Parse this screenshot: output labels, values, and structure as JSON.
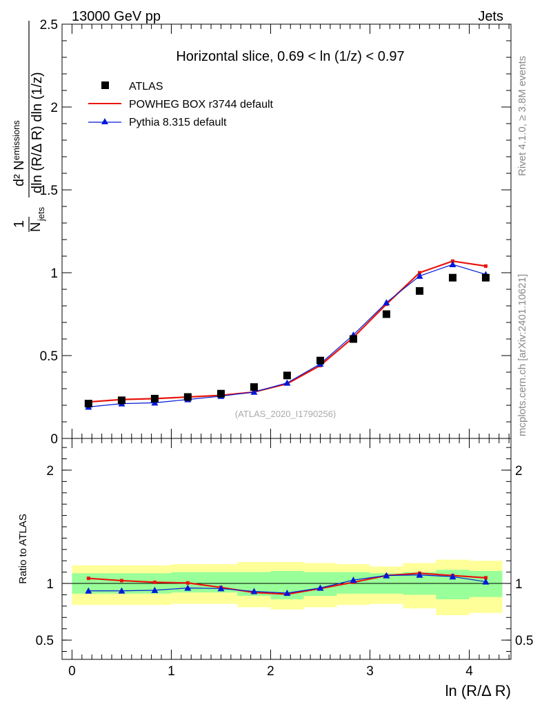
{
  "header": {
    "left": "13000 GeV pp",
    "right": "Jets"
  },
  "side_labels": {
    "rivet": "Rivet 4.1.0, ≥ 3.8M events",
    "mcplots": "mcplots.cern.ch [arXiv:2401.10621]"
  },
  "chart_data": [
    {
      "type": "scatter",
      "panel": "main",
      "title": "Horizontal slice, 0.69 < ln (1/z) < 0.97",
      "ylabel": "1/N_jets d²N_emissions / dln(R/ΔR) dln(1/z)",
      "xlabel": "",
      "xlim": [
        -0.1,
        4.42
      ],
      "ylim": [
        0,
        2.5
      ],
      "yticks": [
        "0",
        "0.5",
        "1",
        "1.5",
        "2",
        "2.5"
      ],
      "watermark": "(ATLAS_2020_I1790256)",
      "x": [
        0.166,
        0.5,
        0.833,
        1.166,
        1.5,
        1.833,
        2.166,
        2.5,
        2.833,
        3.166,
        3.5,
        3.833,
        4.166
      ],
      "series": [
        {
          "name": "ATLAS",
          "style": "marker-square",
          "color": "#000000",
          "values": [
            0.21,
            0.23,
            0.24,
            0.25,
            0.27,
            0.31,
            0.38,
            0.47,
            0.6,
            0.75,
            0.89,
            0.97,
            0.97
          ]
        },
        {
          "name": "POWHEG BOX r3744 default",
          "style": "line-red",
          "color": "#e8140c",
          "values": [
            0.22,
            0.235,
            0.24,
            0.25,
            0.26,
            0.28,
            0.33,
            0.44,
            0.61,
            0.81,
            1.0,
            1.07,
            1.04
          ]
        },
        {
          "name": "Pythia 8.315 default",
          "style": "line-blue-triangle",
          "color": "#0018d8",
          "values": [
            0.19,
            0.21,
            0.215,
            0.235,
            0.255,
            0.28,
            0.335,
            0.45,
            0.625,
            0.82,
            0.98,
            1.05,
            0.99
          ]
        }
      ]
    },
    {
      "type": "line",
      "panel": "ratio",
      "ylabel": "Ratio to ATLAS",
      "xlabel": "ln (R/Δ R)",
      "xlim": [
        -0.1,
        4.42
      ],
      "ylim": [
        0.33,
        2.28
      ],
      "xticks": [
        "0",
        "1",
        "2",
        "3",
        "4"
      ],
      "yticks": [
        "0.5",
        "1",
        "2"
      ],
      "bin_edges": [
        0.0,
        0.333,
        0.666,
        1.0,
        1.333,
        1.666,
        2.0,
        2.333,
        2.666,
        3.0,
        3.333,
        3.666,
        4.0,
        4.333
      ],
      "band_outer": {
        "color": "#ffff99",
        "lo": [
          0.81,
          0.81,
          0.81,
          0.82,
          0.82,
          0.79,
          0.77,
          0.79,
          0.81,
          0.82,
          0.78,
          0.72,
          0.74
        ],
        "hi": [
          1.16,
          1.16,
          1.16,
          1.17,
          1.17,
          1.19,
          1.19,
          1.18,
          1.17,
          1.15,
          1.18,
          1.21,
          1.2
        ]
      },
      "band_inner": {
        "color": "#99ff99",
        "lo": [
          0.91,
          0.91,
          0.91,
          0.92,
          0.92,
          0.89,
          0.86,
          0.89,
          0.91,
          0.91,
          0.9,
          0.86,
          0.88
        ],
        "hi": [
          1.09,
          1.09,
          1.09,
          1.1,
          1.1,
          1.1,
          1.11,
          1.1,
          1.1,
          1.09,
          1.1,
          1.12,
          1.11
        ]
      },
      "x": [
        0.166,
        0.5,
        0.833,
        1.166,
        1.5,
        1.833,
        2.166,
        2.5,
        2.833,
        3.166,
        3.5,
        3.833,
        4.166
      ],
      "series": [
        {
          "name": "POWHEG BOX r3744 default",
          "color": "#e8140c",
          "values": [
            1.045,
            1.025,
            1.01,
            1.005,
            0.965,
            0.92,
            0.905,
            0.955,
            1.01,
            1.07,
            1.09,
            1.07,
            1.05
          ]
        },
        {
          "name": "Pythia 8.315 default",
          "color": "#0018d8",
          "values": [
            0.935,
            0.935,
            0.94,
            0.96,
            0.955,
            0.93,
            0.915,
            0.96,
            1.03,
            1.07,
            1.075,
            1.06,
            1.015
          ]
        }
      ]
    }
  ]
}
